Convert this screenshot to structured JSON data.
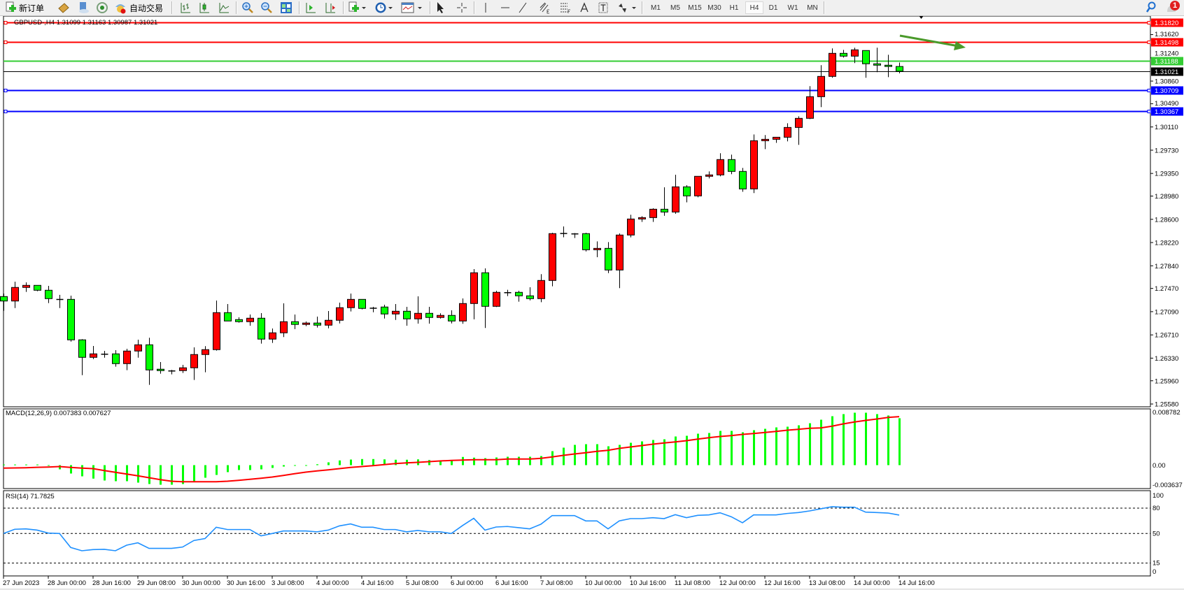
{
  "toolbar": {
    "new_order_label": "新订单",
    "auto_trading_label": "自动交易",
    "timeframes": [
      "M1",
      "M5",
      "M15",
      "M30",
      "H1",
      "H4",
      "D1",
      "W1",
      "MN"
    ],
    "active_timeframe": "H4",
    "notification_count": "1"
  },
  "chart": {
    "title": "GBPUSD-,H4  1.31099 1.31163 1.30987 1.31021",
    "up_color": "#ff0000",
    "down_color": "#00ff00",
    "price_ticks": [
      "1.31620",
      "1.31240",
      "1.30860",
      "1.30490",
      "1.30110",
      "1.29730",
      "1.29350",
      "1.28980",
      "1.28600",
      "1.28220",
      "1.27840",
      "1.27470",
      "1.27090",
      "1.26710",
      "1.26330",
      "1.25960",
      "1.25580"
    ],
    "levels": [
      {
        "price": 1.3182,
        "label": "1.31820",
        "color": "#ff0000",
        "kind": "horizontal-line"
      },
      {
        "price": 1.31498,
        "label": "1.31498",
        "color": "#ff0000",
        "kind": "horizontal-line"
      },
      {
        "price": 1.31188,
        "label": "1.31188",
        "color": "#33cc33",
        "kind": "ask-line"
      },
      {
        "price": 1.31021,
        "label": "1.31021",
        "color": "#000000",
        "kind": "bid-line"
      },
      {
        "price": 1.30709,
        "label": "1.30709",
        "color": "#0000ff",
        "kind": "horizontal-line"
      },
      {
        "price": 1.30367,
        "label": "1.30367",
        "color": "#0000ff",
        "kind": "horizontal-line"
      }
    ],
    "arrow_color": "#4a9a2a",
    "time_labels": [
      "27 Jun 2023",
      "28 Jun 00:00",
      "28 Jun 16:00",
      "29 Jun 08:00",
      "30 Jun 00:00",
      "30 Jun 16:00",
      "3 Jul 08:00",
      "4 Jul 00:00",
      "4 Jul 16:00",
      "5 Jul 08:00",
      "6 Jul 00:00",
      "6 Jul 16:00",
      "7 Jul 08:00",
      "10 Jul 00:00",
      "10 Jul 16:00",
      "11 Jul 08:00",
      "12 Jul 00:00",
      "12 Jul 16:00",
      "13 Jul 08:00",
      "14 Jul 00:00",
      "14 Jul 16:00"
    ]
  },
  "macd": {
    "label": "MACD(12,26,9) 0.007383 0.007627",
    "axis_labels": [
      "0.008782",
      "0.00",
      "-0.003637"
    ],
    "hist_color": "#00ff00",
    "signal_color": "#ff0000"
  },
  "rsi": {
    "label": "RSI(14) 71.7825",
    "axis_labels": [
      "100",
      "80",
      "50",
      "15",
      "0"
    ],
    "levels": [
      80,
      50,
      15
    ],
    "line_color": "#1e90ff"
  },
  "chart_data": {
    "type": "candlestick",
    "symbol": "GBPUSD-",
    "timeframe": "H4",
    "ylim": [
      1.2558,
      1.3182
    ],
    "ohlc": [
      [
        1.27337,
        1.27386,
        1.27104,
        1.27264
      ],
      [
        1.27264,
        1.27581,
        1.27149,
        1.27486
      ],
      [
        1.27486,
        1.27569,
        1.27413,
        1.2752
      ],
      [
        1.2752,
        1.2752,
        1.27424,
        1.2744
      ],
      [
        1.2744,
        1.27512,
        1.2723,
        1.27303
      ],
      [
        1.27295,
        1.27364,
        1.27149,
        1.27291
      ],
      [
        1.27291,
        1.27352,
        1.26601,
        1.26629
      ],
      [
        1.26629,
        1.26641,
        1.26052,
        1.26343
      ],
      [
        1.26343,
        1.26529,
        1.26315,
        1.264
      ],
      [
        1.264,
        1.26449,
        1.26338,
        1.26398
      ],
      [
        1.264,
        1.26461,
        1.2619,
        1.2624
      ],
      [
        1.2624,
        1.26483,
        1.26133,
        1.26446
      ],
      [
        1.26446,
        1.26632,
        1.26338,
        1.26548
      ],
      [
        1.26548,
        1.26663,
        1.25893,
        1.26137
      ],
      [
        1.26149,
        1.26266,
        1.26076,
        1.26126
      ],
      [
        1.26126,
        1.26137,
        1.26064,
        1.26123
      ],
      [
        1.26126,
        1.26221,
        1.26087,
        1.26172
      ],
      [
        1.26172,
        1.26506,
        1.25973,
        1.26389
      ],
      [
        1.26389,
        1.26526,
        1.26099,
        1.26469
      ],
      [
        1.26469,
        1.27272,
        1.26453,
        1.27074
      ],
      [
        1.27074,
        1.27215,
        1.26937,
        1.26937
      ],
      [
        1.2696,
        1.26998,
        1.2691,
        1.26926
      ],
      [
        1.26926,
        1.27043,
        1.26861,
        1.26983
      ],
      [
        1.26983,
        1.27066,
        1.26567,
        1.26641
      ],
      [
        1.26641,
        1.26815,
        1.26579,
        1.26744
      ],
      [
        1.26744,
        1.27226,
        1.26675,
        1.26926
      ],
      [
        1.26926,
        1.27043,
        1.26804,
        1.26881
      ],
      [
        1.26881,
        1.26929,
        1.26853,
        1.26904
      ],
      [
        1.26904,
        1.27009,
        1.2683,
        1.26869
      ],
      [
        1.26869,
        1.271,
        1.26818,
        1.26949
      ],
      [
        1.26949,
        1.27238,
        1.26898,
        1.27155
      ],
      [
        1.27155,
        1.27386,
        1.27093,
        1.27291
      ],
      [
        1.27291,
        1.27291,
        1.27127,
        1.27143
      ],
      [
        1.27152,
        1.27169,
        1.27081,
        1.27148
      ],
      [
        1.27166,
        1.27203,
        1.26978,
        1.27052
      ],
      [
        1.27052,
        1.27215,
        1.26955,
        1.27097
      ],
      [
        1.27097,
        1.27169,
        1.26861,
        1.26972
      ],
      [
        1.26972,
        1.2734,
        1.26895,
        1.27063
      ],
      [
        1.27063,
        1.27169,
        1.26895,
        1.26995
      ],
      [
        1.26995,
        1.27063,
        1.26978,
        1.27029
      ],
      [
        1.27029,
        1.27112,
        1.26898,
        1.26937
      ],
      [
        1.26937,
        1.27306,
        1.26892,
        1.27223
      ],
      [
        1.27223,
        1.27786,
        1.26964,
        1.27726
      ],
      [
        1.27726,
        1.27798,
        1.26823,
        1.27177
      ],
      [
        1.27177,
        1.27432,
        1.27166,
        1.27406
      ],
      [
        1.27406,
        1.27447,
        1.27344,
        1.27403
      ],
      [
        1.27406,
        1.27432,
        1.27253,
        1.27349
      ],
      [
        1.27349,
        1.27489,
        1.27275,
        1.27303
      ],
      [
        1.27303,
        1.27703,
        1.27245,
        1.276
      ],
      [
        1.276,
        1.2838,
        1.27504,
        1.28366
      ],
      [
        1.28374,
        1.28483,
        1.28306,
        1.2837
      ],
      [
        1.28367,
        1.28374,
        1.28295,
        1.28355
      ],
      [
        1.28366,
        1.2838,
        1.28074,
        1.28102
      ],
      [
        1.28102,
        1.28239,
        1.2798,
        1.28125
      ],
      [
        1.28125,
        1.28227,
        1.27721,
        1.27771
      ],
      [
        1.27771,
        1.28369,
        1.27474,
        1.28343
      ],
      [
        1.28343,
        1.28674,
        1.28305,
        1.28605
      ],
      [
        1.28605,
        1.28651,
        1.28557,
        1.28628
      ],
      [
        1.28628,
        1.2878,
        1.28557,
        1.28765
      ],
      [
        1.28765,
        1.29123,
        1.28658,
        1.28719
      ],
      [
        1.28719,
        1.29329,
        1.28691,
        1.29131
      ],
      [
        1.29131,
        1.29158,
        1.28878,
        1.28983
      ],
      [
        1.28983,
        1.29303,
        1.2896,
        1.29303
      ],
      [
        1.29303,
        1.29383,
        1.29269,
        1.29326
      ],
      [
        1.29326,
        1.2968,
        1.29303,
        1.29577
      ],
      [
        1.29577,
        1.29657,
        1.29337,
        1.29383
      ],
      [
        1.29383,
        1.2944,
        1.29051,
        1.29097
      ],
      [
        1.29097,
        1.29988,
        1.29029,
        1.29885
      ],
      [
        1.29885,
        1.29977,
        1.29748,
        1.29908
      ],
      [
        1.29908,
        1.29942,
        1.29851,
        1.29942
      ],
      [
        1.29942,
        1.30171,
        1.29874,
        1.30102
      ],
      [
        1.30102,
        1.30285,
        1.29817,
        1.30251
      ],
      [
        1.30251,
        1.30777,
        1.30239,
        1.30605
      ],
      [
        1.30605,
        1.3112,
        1.30434,
        1.30937
      ],
      [
        1.30937,
        1.31394,
        1.30914,
        1.31314
      ],
      [
        1.31314,
        1.31371,
        1.31245,
        1.31268
      ],
      [
        1.31268,
        1.31406,
        1.31154,
        1.31371
      ],
      [
        1.3136,
        1.3136,
        1.30914,
        1.31143
      ],
      [
        1.31143,
        1.31406,
        1.31006,
        1.3112
      ],
      [
        1.3112,
        1.31291,
        1.30925,
        1.31099
      ],
      [
        1.31099,
        1.31163,
        1.30987,
        1.31021
      ]
    ],
    "macd_hist": [
      0.0001,
      0.0001,
      0.0001,
      0.0001,
      0.0,
      -0.00066,
      -0.00132,
      -0.00176,
      -0.00212,
      -0.00242,
      -0.00253,
      -0.00253,
      -0.00275,
      -0.00297,
      -0.00308,
      -0.00308,
      -0.00297,
      -0.00253,
      -0.00198,
      -0.00154,
      -0.0011,
      -0.00077,
      -0.00077,
      -0.00066,
      -0.00044,
      -0.00022,
      -0.00011,
      0.0,
      0.00014,
      0.00044,
      0.00074,
      0.00088,
      0.00096,
      0.00096,
      0.00091,
      0.00085,
      0.00085,
      0.00091,
      0.0008,
      0.00074,
      0.0008,
      0.00129,
      0.00118,
      0.0011,
      0.00121,
      0.00132,
      0.00132,
      0.00132,
      0.00143,
      0.0022,
      0.00275,
      0.00319,
      0.0033,
      0.0033,
      0.00297,
      0.00319,
      0.00352,
      0.00374,
      0.00396,
      0.00407,
      0.00451,
      0.00462,
      0.00495,
      0.00506,
      0.00539,
      0.00539,
      0.00517,
      0.0055,
      0.00572,
      0.00594,
      0.00605,
      0.00627,
      0.0066,
      0.00715,
      0.0077,
      0.00803,
      0.00825,
      0.00825,
      0.00803,
      0.00781,
      0.007383
    ],
    "macd_signal": [
      -0.00047,
      -0.00044,
      -0.00041,
      -0.00035,
      -0.0003,
      -0.00022,
      -0.00036,
      -0.00047,
      -0.00055,
      -0.00085,
      -0.00113,
      -0.0014,
      -0.00168,
      -0.00198,
      -0.00228,
      -0.00253,
      -0.00261,
      -0.00261,
      -0.00261,
      -0.00261,
      -0.00253,
      -0.00239,
      -0.00223,
      -0.00206,
      -0.00187,
      -0.00162,
      -0.00135,
      -0.0011,
      -0.00091,
      -0.00074,
      -0.00055,
      -0.00036,
      -0.00022,
      -8e-05,
      8e-05,
      0.00025,
      0.00036,
      0.00044,
      0.00055,
      0.00066,
      0.00074,
      0.0008,
      0.00085,
      0.00085,
      0.00085,
      0.00096,
      0.00096,
      0.00096,
      0.00107,
      0.00129,
      0.00154,
      0.00176,
      0.00195,
      0.00217,
      0.00234,
      0.00264,
      0.00286,
      0.00308,
      0.0033,
      0.00349,
      0.00366,
      0.00385,
      0.0041,
      0.00432,
      0.00451,
      0.00465,
      0.00484,
      0.00498,
      0.00514,
      0.00531,
      0.0055,
      0.00564,
      0.0058,
      0.00586,
      0.00613,
      0.00649,
      0.00679,
      0.00704,
      0.00726,
      0.00751,
      0.007627
    ],
    "macd_ylim": [
      -0.003637,
      0.008782
    ],
    "rsi": [
      50,
      55,
      55.5,
      54,
      50.5,
      50,
      33.5,
      29.6,
      31,
      31.3,
      29.6,
      36.2,
      39,
      32.4,
      32.4,
      32.4,
      34,
      41.7,
      44,
      57.4,
      54.7,
      54.7,
      54.7,
      47.2,
      50,
      53,
      53,
      53,
      52,
      54,
      59,
      61.3,
      57.4,
      57.4,
      54.7,
      54.7,
      52,
      53.6,
      52,
      52,
      50,
      59.4,
      68,
      54,
      57.7,
      58.3,
      56.9,
      55.5,
      61,
      71.2,
      71.2,
      71.2,
      64.9,
      64.9,
      55.5,
      64.9,
      67.6,
      67.6,
      68.7,
      67.6,
      72.3,
      68.7,
      71.5,
      72,
      74.5,
      69.8,
      62.7,
      72,
      72,
      72,
      73.7,
      74.8,
      76.7,
      79.2,
      81.7,
      81.1,
      81.1,
      75.3,
      74.8,
      74.2,
      71.7825
    ],
    "rsi_ylim": [
      0,
      100
    ]
  }
}
